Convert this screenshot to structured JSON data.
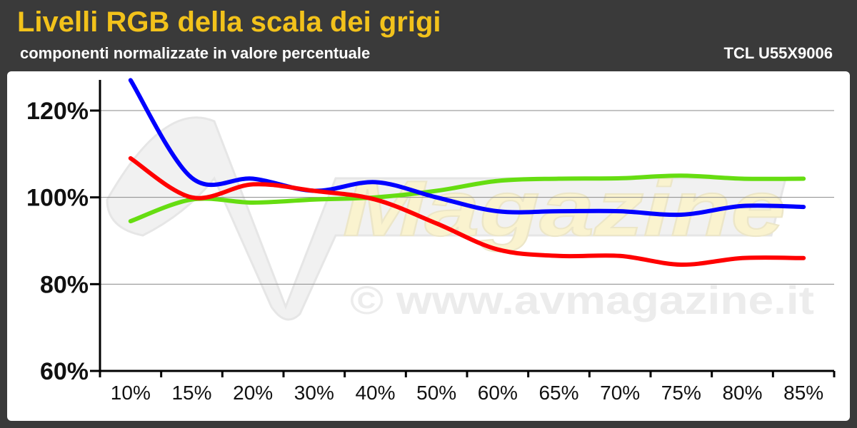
{
  "header": {
    "title": "Livelli RGB della scala dei grigi",
    "subtitle": "componenti normalizzate in valore percentuale",
    "model": "TCL U55X9006"
  },
  "watermark": {
    "brand": "Magazine",
    "site": "© www.avmagazine.it"
  },
  "colors": {
    "background": "#3a3a3a",
    "title": "#f2c21b",
    "red": "#ff0000",
    "green": "#66dd11",
    "blue": "#0000ff"
  },
  "chart_data": {
    "type": "line",
    "categories": [
      "10%",
      "15%",
      "20%",
      "30%",
      "40%",
      "50%",
      "60%",
      "65%",
      "70%",
      "75%",
      "80%",
      "85%"
    ],
    "ylim": [
      60,
      120
    ],
    "yticks": [
      60,
      80,
      100,
      120
    ],
    "ytick_labels": [
      "60%",
      "80%",
      "100%",
      "120%"
    ],
    "grid": true,
    "series": [
      {
        "color": "#ff0000",
        "values": [
          109,
          100,
          103,
          101.5,
          99.5,
          94,
          88,
          86.5,
          86.5,
          84.5,
          86,
          86
        ]
      },
      {
        "color": "#66dd11",
        "values": [
          94.5,
          99.5,
          98.8,
          99.5,
          100,
          101.5,
          103.8,
          104.3,
          104.4,
          105,
          104.3,
          104.3
        ]
      },
      {
        "color": "#0000ff",
        "values": [
          127,
          104.5,
          104.3,
          101.5,
          103.5,
          100,
          96.8,
          96.8,
          96.8,
          96,
          98,
          97.8
        ]
      }
    ]
  }
}
